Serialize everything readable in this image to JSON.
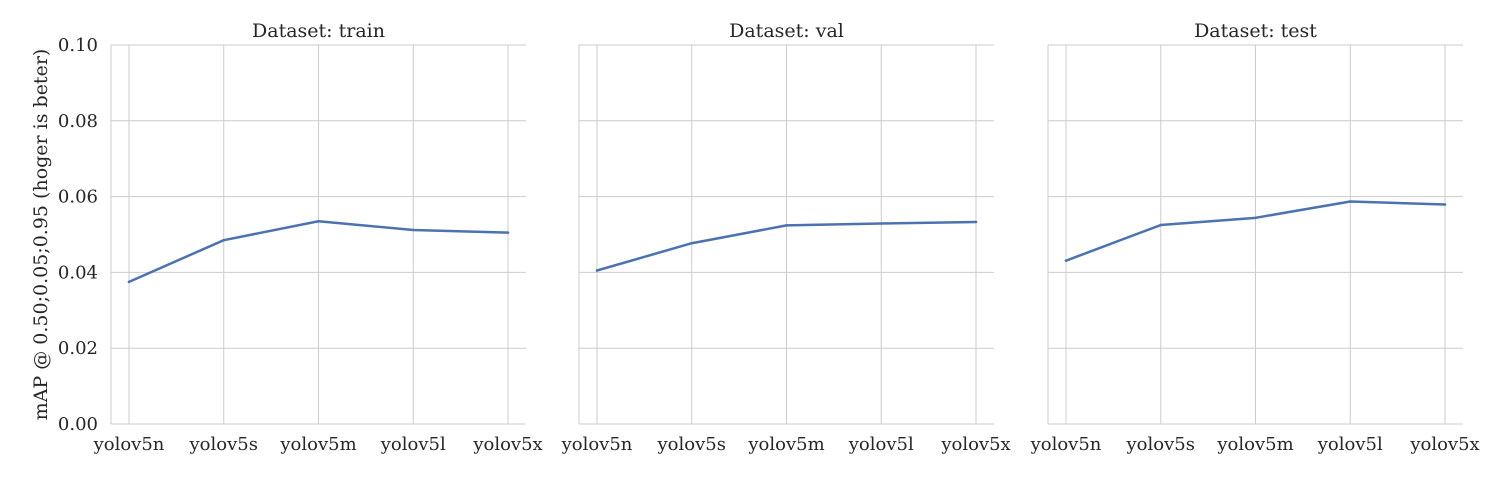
{
  "colors": {
    "series": "#4c72b0",
    "grid": "#cccccc",
    "text": "#262626"
  },
  "chart_data": [
    {
      "type": "line",
      "title": "Dataset: train",
      "xlabel": "",
      "ylabel": "mAP @ 0.50;0.05;0.95 (hoger is beter)",
      "categories": [
        "yolov5n",
        "yolov5s",
        "yolov5m",
        "yolov5l",
        "yolov5x"
      ],
      "values": [
        0.0375,
        0.0485,
        0.0535,
        0.0512,
        0.0505
      ],
      "ylim": [
        0.0,
        0.1
      ],
      "yticks": [
        "0.00",
        "0.02",
        "0.04",
        "0.06",
        "0.08",
        "0.10"
      ],
      "grid": true
    },
    {
      "type": "line",
      "title": "Dataset: val",
      "xlabel": "",
      "ylabel": "",
      "categories": [
        "yolov5n",
        "yolov5s",
        "yolov5m",
        "yolov5l",
        "yolov5x"
      ],
      "values": [
        0.0405,
        0.0477,
        0.0524,
        0.0529,
        0.0533
      ],
      "ylim": [
        0.0,
        0.1
      ],
      "yticks": [],
      "grid": true
    },
    {
      "type": "line",
      "title": "Dataset: test",
      "xlabel": "",
      "ylabel": "",
      "categories": [
        "yolov5n",
        "yolov5s",
        "yolov5m",
        "yolov5l",
        "yolov5x"
      ],
      "values": [
        0.0431,
        0.0525,
        0.0544,
        0.0587,
        0.0579
      ],
      "ylim": [
        0.0,
        0.1
      ],
      "yticks": [],
      "grid": true
    }
  ]
}
